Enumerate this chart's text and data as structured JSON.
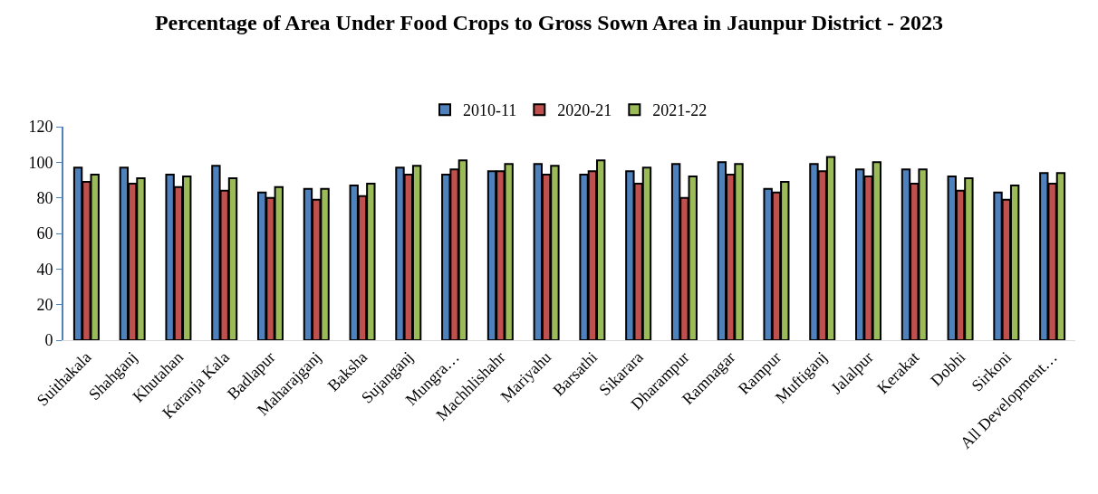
{
  "chart_data": {
    "type": "bar",
    "title": "Percentage of Area Under Food Crops to Gross Sown Area in Jaunpur District - 2023",
    "categories": [
      "Suithakala",
      "Shahganj",
      "Khutahan",
      "Karanja Kala",
      "Badlapur",
      "Maharajganj",
      "Baksha",
      "Sujanganj",
      "Mungra…",
      "Machhlishahr",
      "Mariyahu",
      "Barsathi",
      "Sikarara",
      "Dharampur",
      "Ramnagar",
      "Rampur",
      "Muftiganj",
      "Jalalpur",
      "Kerakat",
      "Dobhi",
      "Sirkoni",
      "All Development…"
    ],
    "series": [
      {
        "name": "2010-11",
        "color": "#4f81bd",
        "values": [
          97,
          97,
          93,
          98,
          83,
          85,
          87,
          97,
          93,
          95,
          99,
          93,
          95,
          99,
          100,
          85,
          99,
          96,
          96,
          92,
          83,
          94
        ]
      },
      {
        "name": "2020-21",
        "color": "#c0504d",
        "values": [
          89,
          88,
          86,
          84,
          80,
          79,
          81,
          93,
          96,
          95,
          93,
          95,
          88,
          80,
          93,
          83,
          95,
          92,
          88,
          84,
          79,
          88
        ]
      },
      {
        "name": "2021-22",
        "color": "#9bbb59",
        "values": [
          93,
          91,
          92,
          91,
          86,
          85,
          88,
          98,
          101,
          99,
          98,
          101,
          97,
          92,
          99,
          89,
          103,
          100,
          96,
          91,
          87,
          94
        ]
      }
    ],
    "ylim": [
      0,
      120
    ],
    "yticks": [
      0,
      20,
      40,
      60,
      80,
      100,
      120
    ],
    "grid": false,
    "legend": "top"
  }
}
